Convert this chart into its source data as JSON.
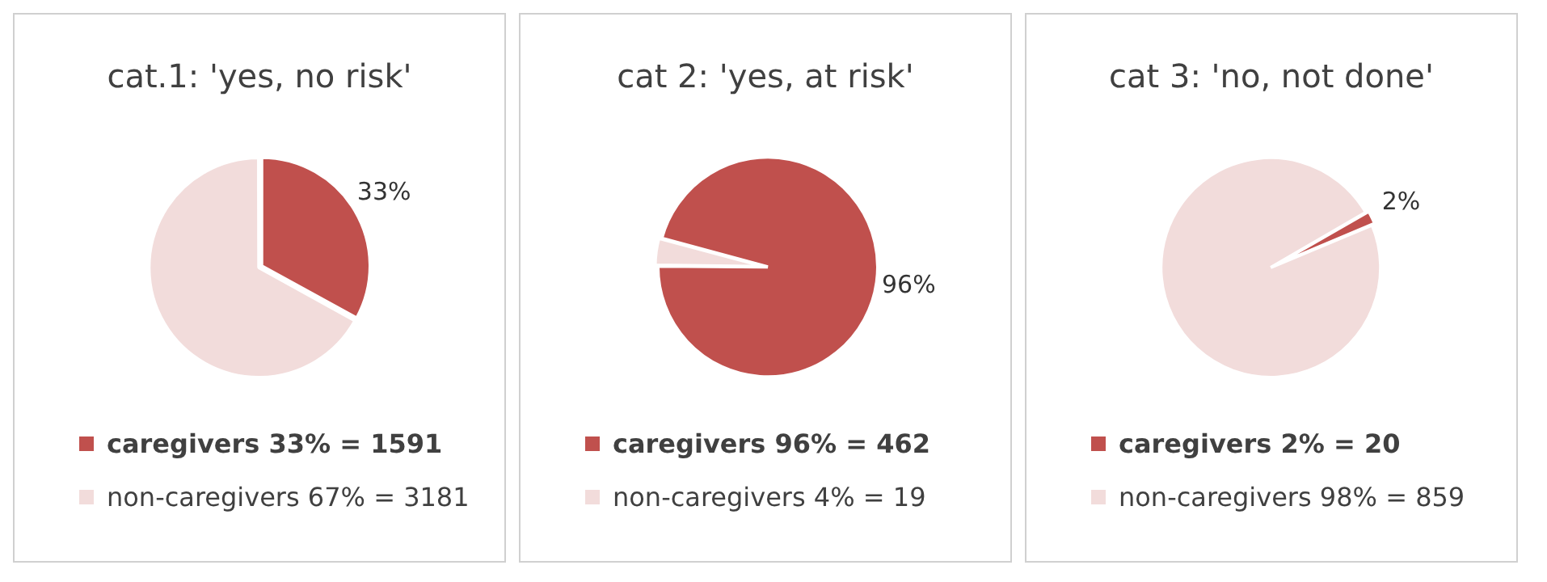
{
  "chart_data": [
    {
      "type": "pie",
      "title": "cat.1: 'yes, no risk'",
      "categories": [
        "caregivers 33% = 1591",
        "non-caregivers 67% = 3181"
      ],
      "values": [
        33,
        67
      ],
      "colors": [
        "#c0504d",
        "#f2dcdb"
      ],
      "value_labels": [
        "33%",
        null
      ],
      "legend": "bottom"
    },
    {
      "type": "pie",
      "title": "cat 2: 'yes, at risk'",
      "categories": [
        "caregivers 96% = 462",
        "non-caregivers 4% = 19"
      ],
      "values": [
        96,
        4
      ],
      "colors": [
        "#c0504d",
        "#f2dcdb"
      ],
      "value_labels": [
        "96%",
        null
      ],
      "legend": "bottom"
    },
    {
      "type": "pie",
      "title": "cat 3: 'no, not done'",
      "categories": [
        "caregivers 2% = 20",
        "non-caregivers 98% = 859"
      ],
      "values": [
        2,
        98
      ],
      "colors": [
        "#c0504d",
        "#f2dcdb"
      ],
      "value_labels": [
        "2%",
        null
      ],
      "legend": "bottom"
    }
  ]
}
